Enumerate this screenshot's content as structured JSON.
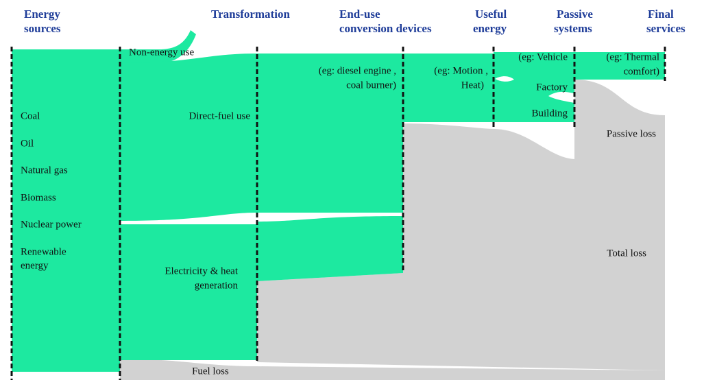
{
  "headers": [
    {
      "lines": [
        "Energy",
        "sources"
      ]
    },
    {
      "lines": [
        "Transformation"
      ]
    },
    {
      "lines": [
        "End-use",
        "conversion devices"
      ]
    },
    {
      "lines": [
        "Useful",
        "energy"
      ]
    },
    {
      "lines": [
        "Passive",
        "systems"
      ]
    },
    {
      "lines": [
        "Final",
        "services"
      ]
    }
  ],
  "sources": [
    "Coal",
    "Oil",
    "Natural gas",
    "Biomass",
    "Nuclear power",
    "Renewable",
    "energy"
  ],
  "transformation": {
    "non_energy": "Non-energy use",
    "direct_fuel": "Direct-fuel use",
    "electricity": [
      "Electricity & heat",
      "generation"
    ],
    "fuel_loss": "Fuel loss"
  },
  "devices": [
    "(eg: diesel engine ,",
    "coal burner)"
  ],
  "useful": [
    "(eg: Motion ,",
    "Heat)"
  ],
  "passive": [
    "(eg: Vehicle",
    "Factory",
    "Building"
  ],
  "final": [
    "(eg: Thermal",
    "comfort)"
  ],
  "losses": {
    "passive": "Passive loss",
    "total": "Total loss"
  }
}
